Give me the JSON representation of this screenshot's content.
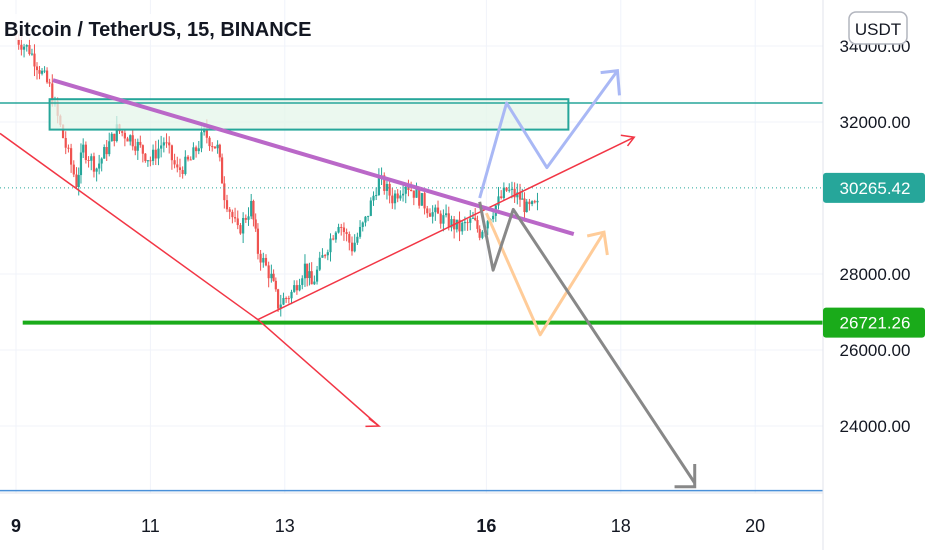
{
  "header": {
    "title": "Bitcoin / TetherUS, 15, BINANCE",
    "currency_badge": "USDT"
  },
  "colors": {
    "candle_up": "#26a69a",
    "candle_down": "#ef5350",
    "trend_red": "#f23645",
    "trend_purple": "#ba68c8",
    "support_green": "#1aab1a",
    "resistance_teal": "#26a69a",
    "box_fill": "#e4f6ea",
    "arrow_blue": "#a9b8f5",
    "arrow_orange": "#ffcc99",
    "arrow_gray": "#888888",
    "bottom_line": "#4a90d9",
    "price_label_teal": "#26a69a",
    "price_label_green": "#1aab1a"
  },
  "chart_data": {
    "type": "candlestick",
    "title": "Bitcoin / TetherUS, 15, BINANCE",
    "x_ticks": [
      "9",
      "11",
      "13",
      "16",
      "18",
      "20"
    ],
    "x_ticks_bold": [
      "9",
      "16"
    ],
    "y_ticks": [
      34000.0,
      32000.0,
      28000.0,
      26000.0,
      24000.0
    ],
    "y_tick_labels": [
      "34000.00",
      "32000.00",
      "28000.00",
      "26000.00",
      "24000.00"
    ],
    "ylim": [
      22000,
      35000
    ],
    "xlim_days": [
      9,
      21
    ],
    "price_labels": [
      {
        "value": 30265.42,
        "text": "30265.42",
        "kind": "current"
      },
      {
        "value": 26721.26,
        "text": "26721.26",
        "kind": "support"
      }
    ],
    "candles_close_path": [
      [
        9.0,
        34200
      ],
      [
        9.2,
        33900
      ],
      [
        9.5,
        32900
      ],
      [
        9.7,
        31600
      ],
      [
        9.9,
        30400
      ],
      [
        10.0,
        31300
      ],
      [
        10.2,
        30800
      ],
      [
        10.5,
        31800
      ],
      [
        10.7,
        31600
      ],
      [
        11.0,
        31000
      ],
      [
        11.2,
        31500
      ],
      [
        11.4,
        30700
      ],
      [
        11.6,
        31000
      ],
      [
        11.8,
        31700
      ],
      [
        12.0,
        31300
      ],
      [
        12.1,
        30100
      ],
      [
        12.3,
        29100
      ],
      [
        12.5,
        29800
      ],
      [
        12.6,
        28600
      ],
      [
        12.8,
        27900
      ],
      [
        12.9,
        27200
      ],
      [
        13.1,
        27500
      ],
      [
        13.3,
        28200
      ],
      [
        13.4,
        27700
      ],
      [
        13.6,
        28600
      ],
      [
        13.8,
        29400
      ],
      [
        14.0,
        28700
      ],
      [
        14.2,
        29400
      ],
      [
        14.4,
        30500
      ],
      [
        14.6,
        30000
      ],
      [
        14.8,
        30400
      ],
      [
        15.0,
        30000
      ],
      [
        15.2,
        29600
      ],
      [
        15.4,
        29400
      ],
      [
        15.6,
        29200
      ],
      [
        15.8,
        29400
      ],
      [
        15.9,
        29100
      ],
      [
        16.1,
        29700
      ],
      [
        16.3,
        30200
      ],
      [
        16.5,
        30000
      ],
      [
        16.6,
        29700
      ],
      [
        16.8,
        29800
      ]
    ],
    "drawings": [
      {
        "type": "zone",
        "label": "resistance box",
        "y_range": [
          31800,
          32600
        ]
      },
      {
        "type": "horizontal_line",
        "value": 32500
      },
      {
        "type": "horizontal_line",
        "value": 26721.26
      },
      {
        "type": "horizontal_line",
        "value": 22300
      }
    ]
  }
}
